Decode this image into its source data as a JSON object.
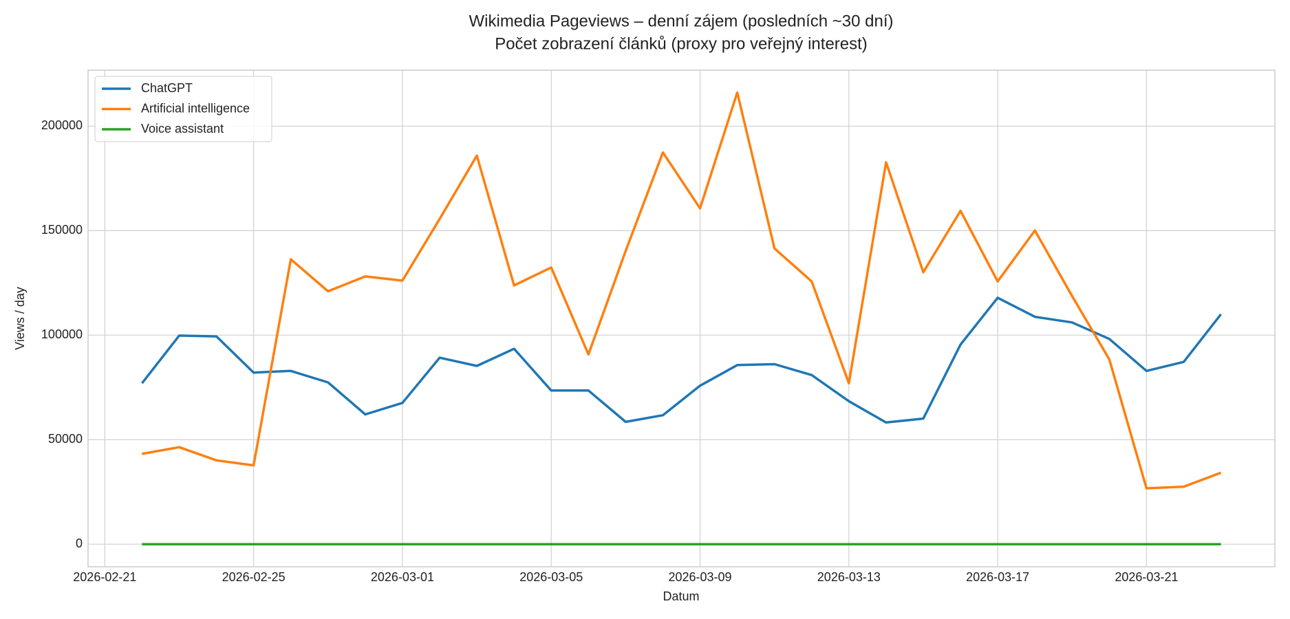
{
  "chart_data": {
    "type": "line",
    "title": "Wikimedia Pageviews – denní zájem (posledních ~30 dní)",
    "subtitle": "Počet zobrazení článků (proxy pro veřejný interest)",
    "x_label": "Datum",
    "y_label": "Views / day",
    "x": [
      "2026-02-22",
      "2026-02-23",
      "2026-02-24",
      "2026-02-25",
      "2026-02-26",
      "2026-02-27",
      "2026-02-28",
      "2026-03-01",
      "2026-03-02",
      "2026-03-03",
      "2026-03-04",
      "2026-03-05",
      "2026-03-06",
      "2026-03-07",
      "2026-03-08",
      "2026-03-09",
      "2026-03-10",
      "2026-03-11",
      "2026-03-12",
      "2026-03-13",
      "2026-03-14",
      "2026-03-15",
      "2026-03-16",
      "2026-03-17",
      "2026-03-18",
      "2026-03-19",
      "2026-03-20",
      "2026-03-21",
      "2026-03-22",
      "2026-03-23"
    ],
    "series": [
      {
        "name": "ChatGPT",
        "color": "#1f77b4",
        "values": [
          77000,
          99800,
          99400,
          82100,
          82900,
          77400,
          62100,
          67600,
          89200,
          85300,
          93500,
          73500,
          73500,
          58500,
          61700,
          75800,
          85700,
          86100,
          80900,
          68400,
          58200,
          60100,
          95500,
          117900,
          108800,
          106100,
          98200,
          82900,
          87200,
          110000
        ]
      },
      {
        "name": "Artificial intelligence",
        "color": "#ff7f0e",
        "values": [
          43200,
          46400,
          40100,
          37700,
          136300,
          121000,
          128100,
          126100,
          155600,
          185900,
          123800,
          132400,
          90800,
          140300,
          187400,
          160700,
          216100,
          141500,
          125700,
          77000,
          182700,
          130100,
          159500,
          125700,
          150100,
          118700,
          88400,
          26700,
          27500,
          34200
        ]
      },
      {
        "name": "Voice assistant",
        "color": "#2ca02c",
        "values": [
          0,
          0,
          0,
          0,
          0,
          0,
          0,
          0,
          0,
          0,
          0,
          0,
          0,
          0,
          0,
          0,
          0,
          0,
          0,
          0,
          0,
          0,
          0,
          0,
          0,
          0,
          0,
          0,
          0,
          0
        ]
      }
    ],
    "xlim": [
      "2026-02-20T13:12",
      "2026-03-24T10:48"
    ],
    "xticks": [
      "2026-02-21",
      "2026-02-25",
      "2026-03-01",
      "2026-03-05",
      "2026-03-09",
      "2026-03-13",
      "2026-03-17",
      "2026-03-21"
    ],
    "ylim": [
      -10800,
      226800
    ],
    "yticks": [
      0,
      50000,
      100000,
      150000,
      200000
    ],
    "grid": true,
    "legend": "upper left"
  }
}
